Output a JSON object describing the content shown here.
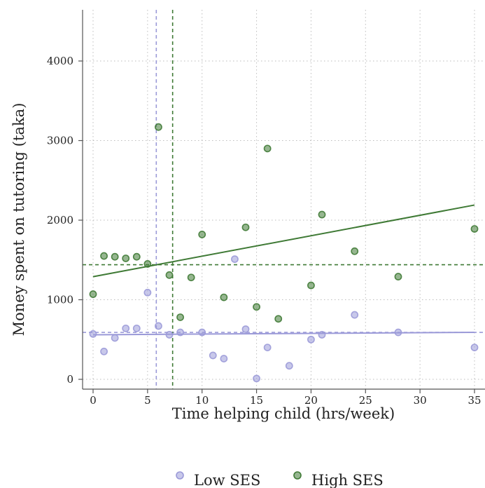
{
  "chart_data": {
    "type": "scatter",
    "xlabel": "Time helping child (hrs/week)",
    "ylabel": "Money spent on tutoring (taka)",
    "xlim": [
      -1,
      36
    ],
    "ylim": [
      -150,
      4650
    ],
    "x_ticks": [
      0,
      5,
      10,
      15,
      20,
      25,
      30,
      35
    ],
    "y_ticks": [
      0,
      1000,
      2000,
      3000,
      4000
    ],
    "grid": true,
    "legend_position": "bottom",
    "series": [
      {
        "name": "Low SES",
        "color": "#9b9ad8",
        "points": [
          {
            "x": 0,
            "y": 570
          },
          {
            "x": 1,
            "y": 350
          },
          {
            "x": 2,
            "y": 520
          },
          {
            "x": 3,
            "y": 640
          },
          {
            "x": 4,
            "y": 640
          },
          {
            "x": 5,
            "y": 1090
          },
          {
            "x": 6,
            "y": 670
          },
          {
            "x": 7,
            "y": 560
          },
          {
            "x": 8,
            "y": 590
          },
          {
            "x": 10,
            "y": 590
          },
          {
            "x": 11,
            "y": 300
          },
          {
            "x": 12,
            "y": 260
          },
          {
            "x": 13,
            "y": 1510
          },
          {
            "x": 14,
            "y": 630
          },
          {
            "x": 15,
            "y": 10
          },
          {
            "x": 16,
            "y": 400
          },
          {
            "x": 18,
            "y": 170
          },
          {
            "x": 20,
            "y": 500
          },
          {
            "x": 21,
            "y": 560
          },
          {
            "x": 24,
            "y": 810
          },
          {
            "x": 28,
            "y": 590
          },
          {
            "x": 35,
            "y": 400
          }
        ],
        "fit": {
          "x": [
            0,
            35
          ],
          "y": [
            560,
            590
          ]
        },
        "mean_x": 5.8,
        "mean_y": 590
      },
      {
        "name": "High SES",
        "color": "#3f7a35",
        "points": [
          {
            "x": 0,
            "y": 1070
          },
          {
            "x": 1,
            "y": 1550
          },
          {
            "x": 2,
            "y": 1540
          },
          {
            "x": 3,
            "y": 1520
          },
          {
            "x": 4,
            "y": 1540
          },
          {
            "x": 5,
            "y": 1450
          },
          {
            "x": 6,
            "y": 3170
          },
          {
            "x": 7,
            "y": 1310
          },
          {
            "x": 8,
            "y": 780
          },
          {
            "x": 9,
            "y": 1280
          },
          {
            "x": 10,
            "y": 1820
          },
          {
            "x": 12,
            "y": 1030
          },
          {
            "x": 14,
            "y": 1910
          },
          {
            "x": 15,
            "y": 910
          },
          {
            "x": 16,
            "y": 2900
          },
          {
            "x": 17,
            "y": 760
          },
          {
            "x": 20,
            "y": 1180
          },
          {
            "x": 21,
            "y": 2070
          },
          {
            "x": 24,
            "y": 1610
          },
          {
            "x": 28,
            "y": 1290
          },
          {
            "x": 35,
            "y": 1890
          }
        ],
        "fit": {
          "x": [
            0,
            35
          ],
          "y": [
            1290,
            2190
          ]
        },
        "mean_x": 7.3,
        "mean_y": 1440
      }
    ]
  }
}
